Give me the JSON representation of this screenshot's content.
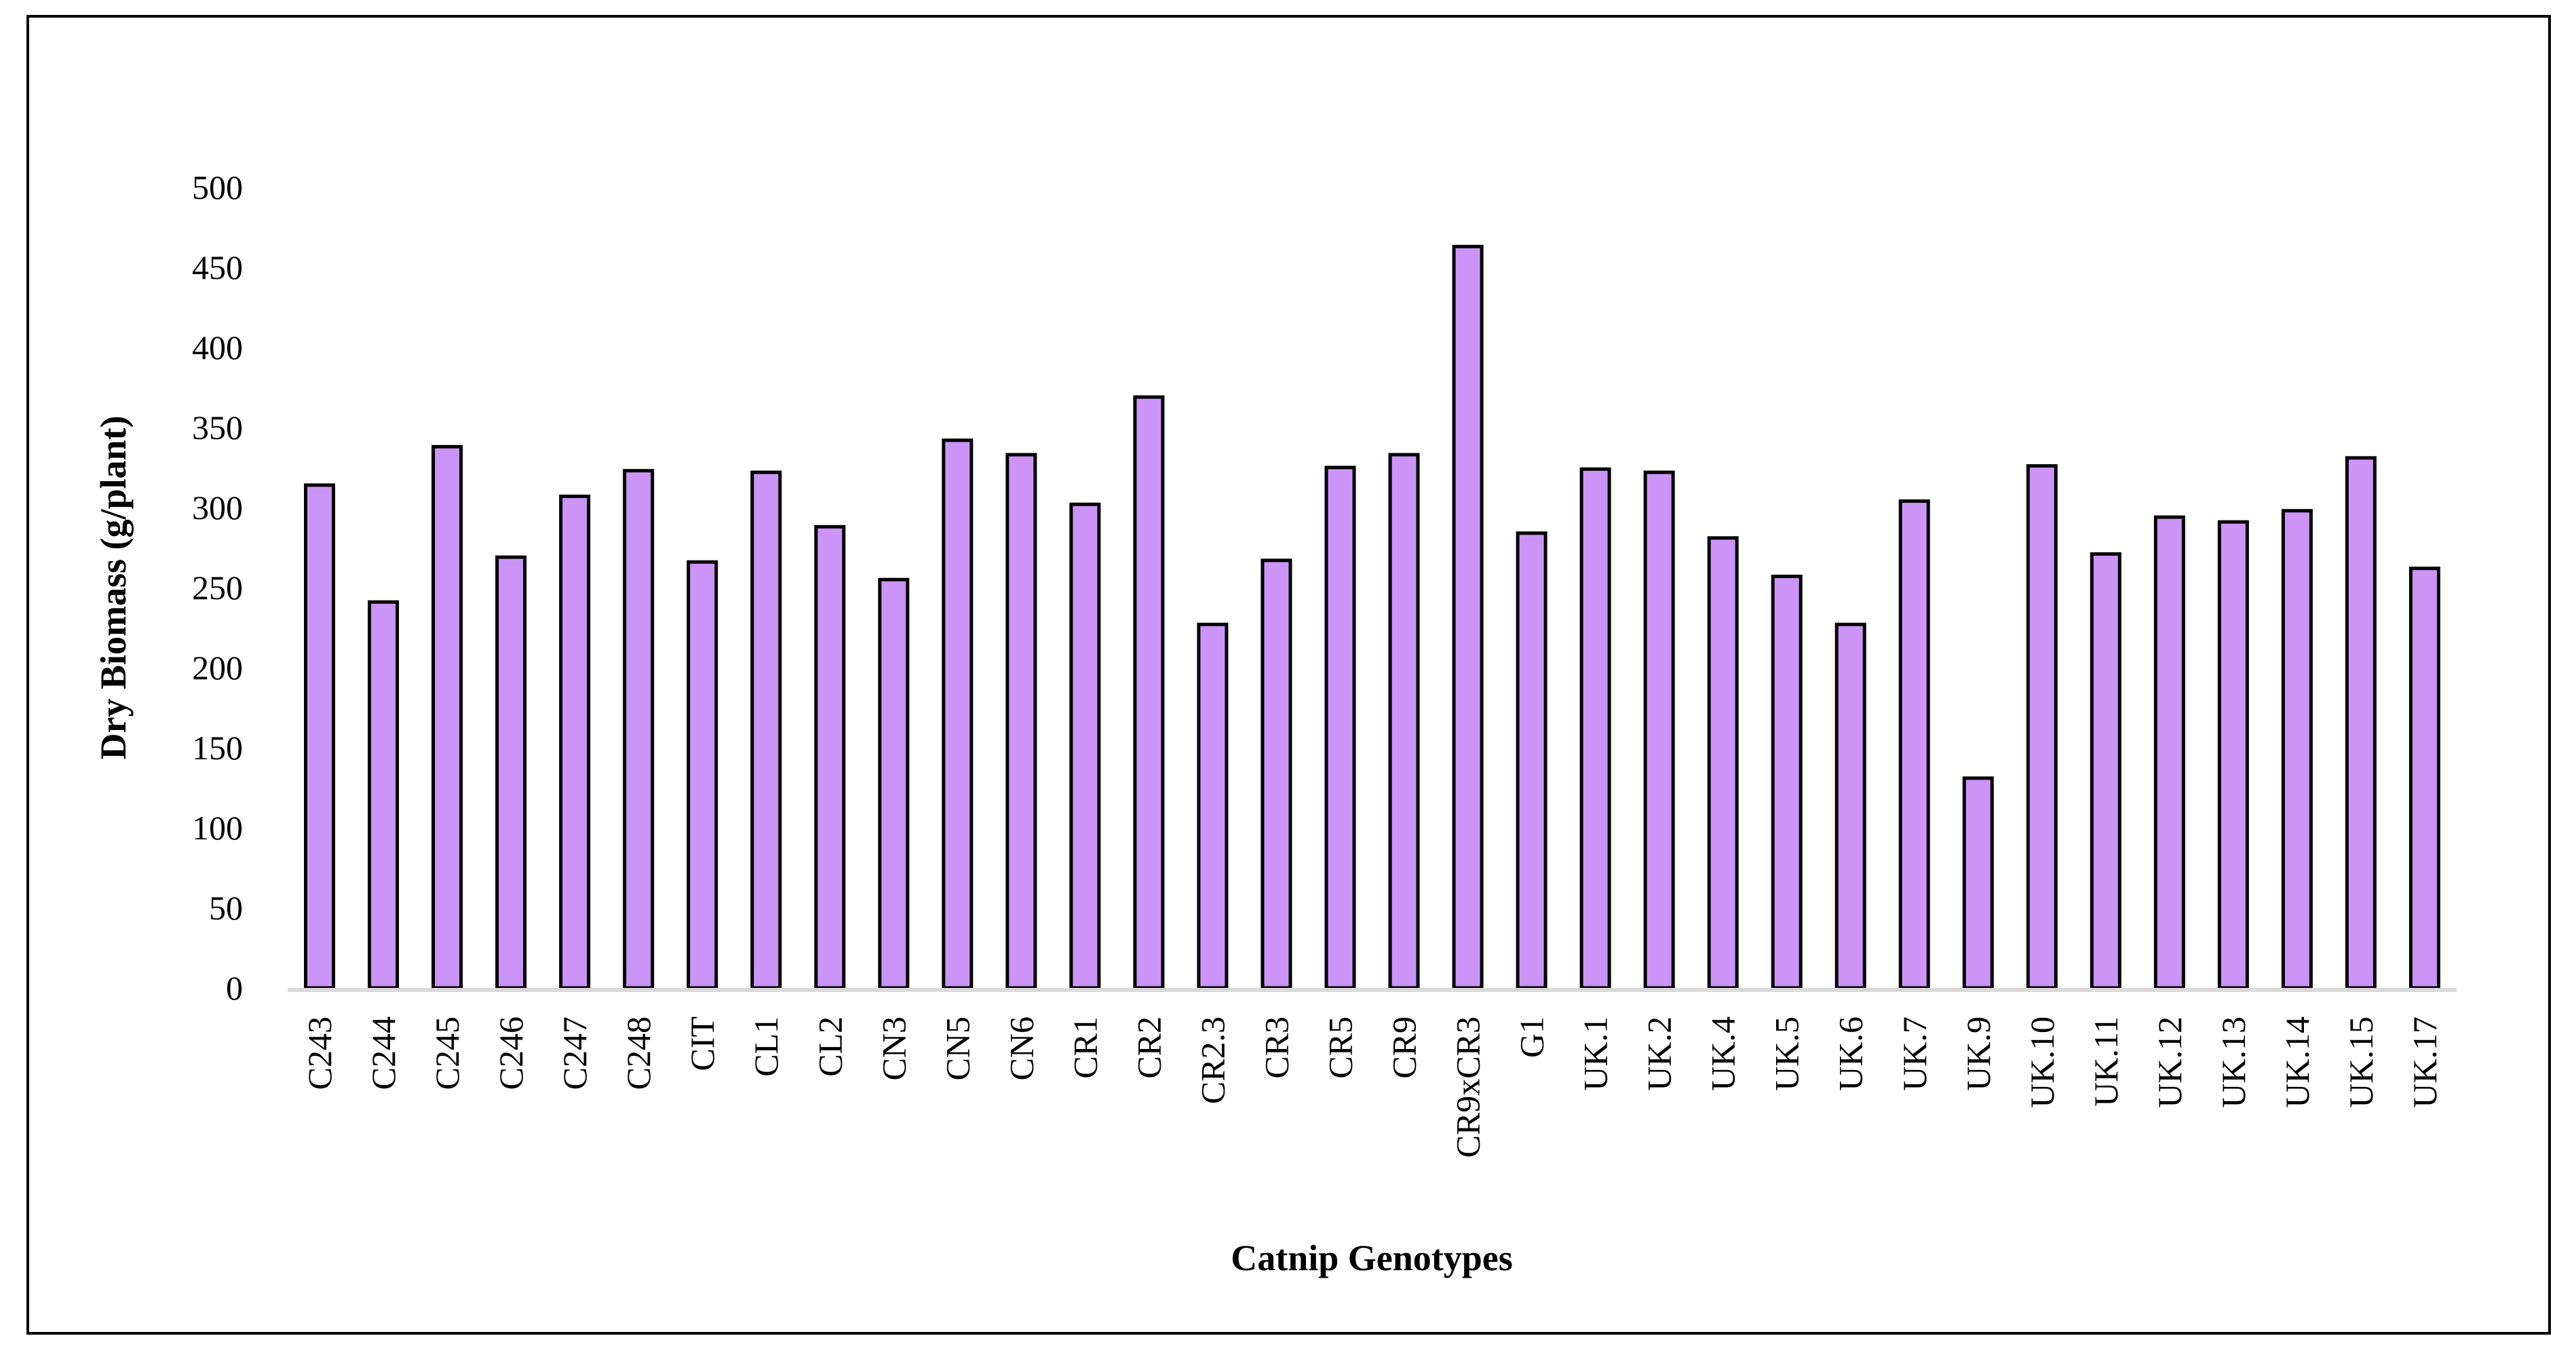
{
  "chart_data": {
    "type": "bar",
    "title": "",
    "xlabel": "Catnip Genotypes",
    "ylabel": "Dry Biomass (g/plant)",
    "ylim": [
      0,
      500
    ],
    "yticks": [
      0,
      50,
      100,
      150,
      200,
      250,
      300,
      350,
      400,
      450,
      500
    ],
    "grid": false,
    "bar_color": "#cc94f7",
    "bar_edge_color": "#000000",
    "categories": [
      "C243",
      "C244",
      "C245",
      "C246",
      "C247",
      "C248",
      "CIT",
      "CL1",
      "CL2",
      "CN3",
      "CN5",
      "CN6",
      "CR1",
      "CR2",
      "CR2.3",
      "CR3",
      "CR5",
      "CR9",
      "CR9xCR3",
      "G1",
      "UK.1",
      "UK.2",
      "UK.4",
      "UK.5",
      "UK.6",
      "UK.7",
      "UK.9",
      "UK.10",
      "UK.11",
      "UK.12",
      "UK.13",
      "UK.14",
      "UK.15",
      "UK.17"
    ],
    "values": [
      314,
      241,
      338,
      269,
      307,
      323,
      266,
      322,
      288,
      255,
      342,
      333,
      302,
      369,
      227,
      267,
      325,
      333,
      463,
      284,
      324,
      322,
      281,
      257,
      227,
      304,
      131,
      326,
      271,
      294,
      291,
      298,
      331,
      262
    ]
  }
}
